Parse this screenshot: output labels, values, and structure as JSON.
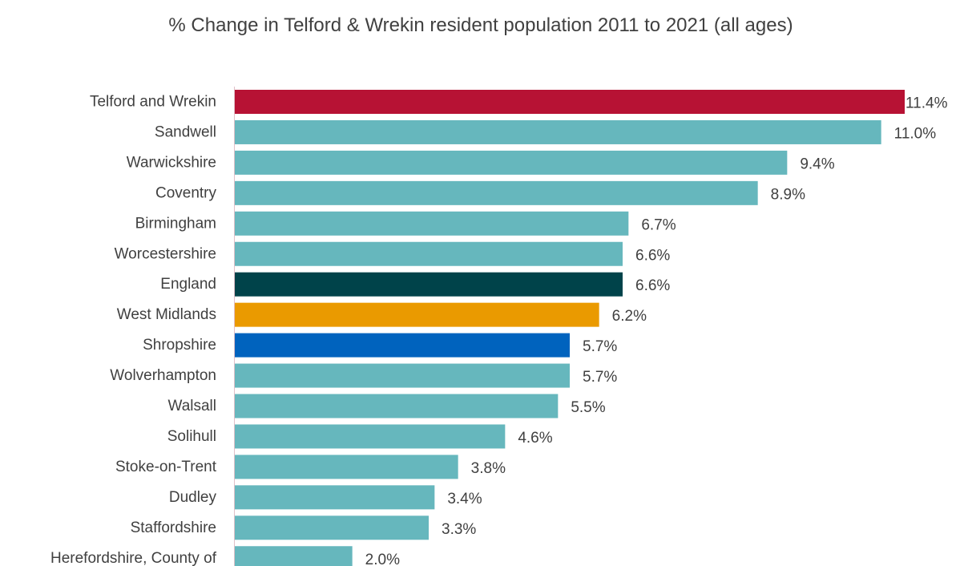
{
  "chart_data": {
    "type": "bar",
    "orientation": "horizontal",
    "title": "% Change in Telford & Wrekin resident population 2011 to 2021 (all ages)",
    "xlabel": "",
    "ylabel": "",
    "value_suffix": "%",
    "xlim": [
      0,
      11.4
    ],
    "grid": false,
    "legend": "none",
    "categories": [
      "Telford and Wrekin",
      "Sandwell",
      "Warwickshire",
      "Coventry",
      "Birmingham",
      "Worcestershire",
      "England",
      "West Midlands",
      "Shropshire",
      "Wolverhampton",
      "Walsall",
      "Solihull",
      "Stoke-on-Trent",
      "Dudley",
      "Staffordshire",
      "Herefordshire, County of"
    ],
    "values": [
      11.4,
      11.0,
      9.4,
      8.9,
      6.7,
      6.6,
      6.6,
      6.2,
      5.7,
      5.7,
      5.5,
      4.6,
      3.8,
      3.4,
      3.3,
      2.0
    ],
    "value_labels": [
      "11.4%",
      "11.0%",
      "9.4%",
      "8.9%",
      "6.7%",
      "6.6%",
      "6.6%",
      "6.2%",
      "5.7%",
      "5.7%",
      "5.5%",
      "4.6%",
      "3.8%",
      "3.4%",
      "3.3%",
      "2.0%"
    ],
    "bar_colors": [
      "#B71234",
      "#66B7BD",
      "#66B7BD",
      "#66B7BD",
      "#66B7BD",
      "#66B7BD",
      "#00434A",
      "#EA9A00",
      "#0063BE",
      "#66B7BD",
      "#66B7BD",
      "#66B7BD",
      "#66B7BD",
      "#66B7BD",
      "#66B7BD",
      "#66B7BD"
    ],
    "colors": {
      "default_bar": "#66B7BD",
      "highlight": "#B71234",
      "england": "#00434A",
      "region": "#EA9A00",
      "neighbour": "#0063BE",
      "axis": "#E0C0C8",
      "text": "#404040"
    }
  }
}
